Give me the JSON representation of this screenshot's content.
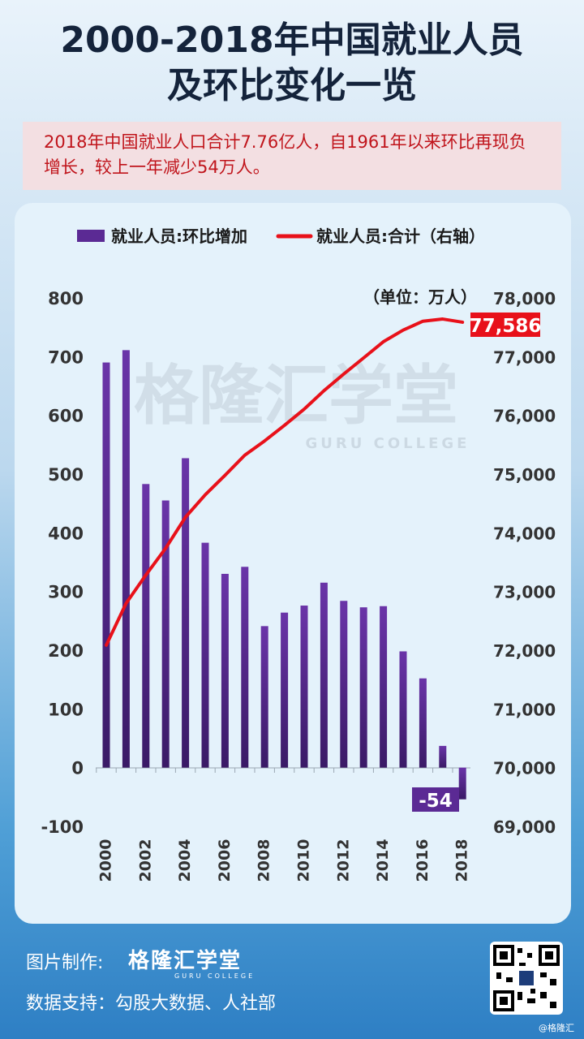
{
  "title_line1": "2000-2018年中国就业人员",
  "title_line2": "及环比变化一览",
  "subtitle": "2018年中国就业人口合计7.76亿人，自1961年以来环比再现负增长，较上一年减少54万人。",
  "watermark": {
    "cn": "格隆汇学堂",
    "en": "GURU COLLEGE"
  },
  "footer": {
    "made_by_label": "图片制作:",
    "brand_cn": "格隆汇学堂",
    "brand_en": "GURU COLLEGE",
    "source_label": "数据支持：勾股大数据、人社部",
    "credit": "@格隆汇"
  },
  "colors": {
    "bar": "#5b2a94",
    "line": "#e8111a",
    "title": "#14233b",
    "subtitle": "#c0141b"
  },
  "chart_data": {
    "type": "bar+line",
    "unit_label": "（单位：万人）",
    "x": [
      2000,
      2001,
      2002,
      2003,
      2004,
      2005,
      2006,
      2007,
      2008,
      2009,
      2010,
      2011,
      2012,
      2013,
      2014,
      2015,
      2016,
      2017,
      2018
    ],
    "x_tick_labels": [
      "2000",
      "2002",
      "2004",
      "2006",
      "2008",
      "2010",
      "2012",
      "2014",
      "2016",
      "2018"
    ],
    "series": [
      {
        "name": "就业人员:环比增加",
        "type": "bar",
        "axis": "left",
        "values": [
          690,
          711,
          483,
          455,
          527,
          383,
          330,
          342,
          241,
          264,
          276,
          315,
          284,
          273,
          275,
          198,
          152,
          37,
          -54
        ]
      },
      {
        "name": "就业人员:合计（右轴）",
        "type": "line",
        "axis": "right",
        "values": [
          72085,
          72797,
          73280,
          73736,
          74264,
          74647,
          74978,
          75321,
          75564,
          75828,
          76105,
          76420,
          76704,
          76977,
          77253,
          77451,
          77603,
          77640,
          77586
        ]
      }
    ],
    "y_left": {
      "ticks": [
        -100,
        0,
        100,
        200,
        300,
        400,
        500,
        600,
        700,
        800
      ],
      "tick_labels": [
        "-100",
        "0",
        "100",
        "200",
        "300",
        "400",
        "500",
        "600",
        "700",
        "800"
      ],
      "lim": [
        -100,
        800
      ]
    },
    "y_right": {
      "ticks": [
        69000,
        70000,
        71000,
        72000,
        73000,
        74000,
        75000,
        76000,
        77000,
        78000
      ],
      "tick_labels": [
        "69,000",
        "70,000",
        "71,000",
        "72,000",
        "73,000",
        "74,000",
        "75,000",
        "76,000",
        "77,000",
        "78,000"
      ],
      "lim": [
        69000,
        78000
      ]
    },
    "annotations": {
      "last_line_value": "77,586",
      "last_bar_value": "-54"
    },
    "legend_position": "top",
    "grid": false
  }
}
